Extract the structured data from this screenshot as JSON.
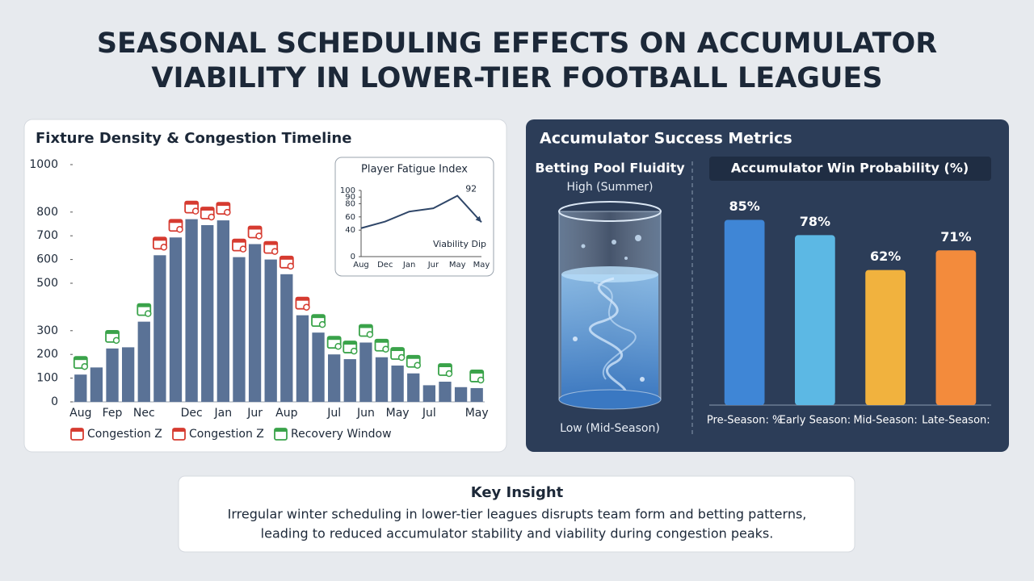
{
  "title_lines": [
    "SEASONAL SCHEDULING EFFECTS ON ACCUMULATOR",
    "VIABILITY IN LOWER-TIER FOOTBALL LEAGUES"
  ],
  "chart_data": [
    {
      "type": "bar",
      "title": "Fixture Density & Congestion Timeline",
      "categories": [
        "Aug",
        null,
        "Fep",
        null,
        "Nec",
        null,
        null,
        "Dec",
        null,
        "Jan",
        null,
        "Jur",
        null,
        "Aup",
        null,
        null,
        "Jul",
        null,
        "Jun",
        null,
        "May",
        null,
        "Jul",
        null,
        null,
        "May"
      ],
      "values": [
        115,
        145,
        225,
        230,
        338,
        618,
        693,
        770,
        745,
        765,
        610,
        665,
        600,
        538,
        365,
        292,
        200,
        180,
        250,
        188,
        153,
        120,
        70,
        85,
        62,
        58
      ],
      "color": "#5a7296",
      "ylim": [
        0,
        1000
      ],
      "yticks": [
        0,
        100,
        200,
        300,
        500,
        600,
        700,
        800,
        1000
      ],
      "bar_markers": [
        2,
        null,
        2,
        null,
        2,
        0,
        0,
        0,
        0,
        0,
        0,
        0,
        0,
        0,
        0,
        2,
        2,
        2,
        2,
        2,
        2,
        2,
        null,
        2,
        null,
        2
      ],
      "legend": [
        {
          "name": "Congestion Z",
          "color": "#d63b30"
        },
        {
          "name": "Congestion Z",
          "color": "#d63b30"
        },
        {
          "name": "Recovery Window",
          "color": "#3aa34a"
        }
      ]
    },
    {
      "type": "line",
      "title": "Player Fatigue Index",
      "categories": [
        "Aug",
        "Dec",
        "Jan",
        "Jur",
        "May",
        "May"
      ],
      "values": [
        43,
        53,
        68,
        73,
        92,
        52
      ],
      "color": "#2f4668",
      "ylim": [
        0,
        100
      ],
      "yticks": [
        0,
        40,
        60,
        80,
        90,
        100
      ],
      "label_max": true,
      "annotation": "Viability Dip"
    },
    {
      "type": "bar",
      "title": "Accumulator Win Probability (%)",
      "categories": [
        "Pre-Season: %",
        "Early Season:",
        "Mid-Season:",
        "Late-Season:"
      ],
      "values": [
        85,
        78,
        62,
        71
      ],
      "value_labels": [
        "85%",
        "78%",
        "62%",
        "71%"
      ],
      "colors": [
        "#3f86d6",
        "#5cb8e4",
        "#f1b23e",
        "#f38b3c"
      ],
      "ylim": [
        0,
        100
      ]
    }
  ],
  "panel_title": "Accumulator Success Metrics",
  "fluidity": {
    "title": "Betting Pool Fluidity",
    "high": "High (Summer)",
    "low": "Low (Mid-Season)"
  },
  "insight": {
    "title": "Key Insight",
    "lines": [
      "Irregular winter scheduling in lower-tier leagues disrupts team form and betting patterns,",
      "leading to reduced accumulator stability and viability during congestion peaks."
    ]
  }
}
